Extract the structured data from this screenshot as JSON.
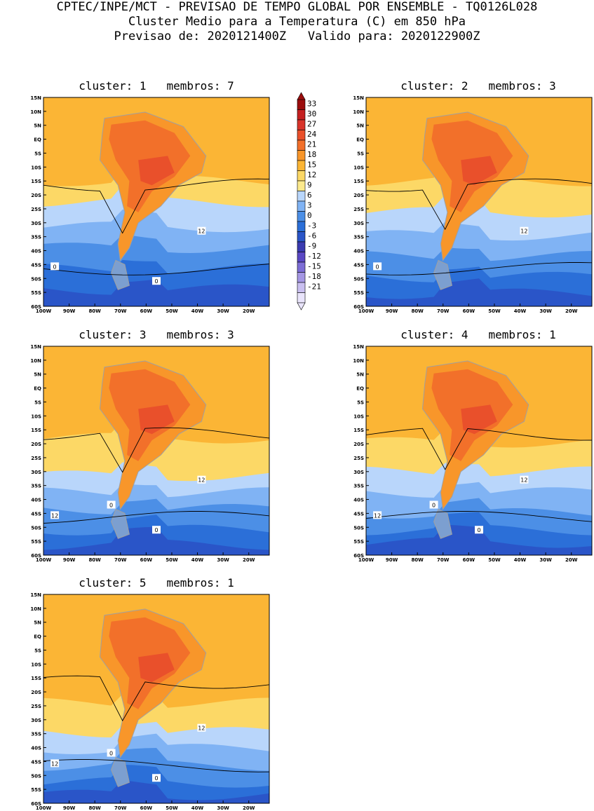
{
  "header": {
    "line1": "CPTEC/INPE/MCT - PREVISAO DE TEMPO GLOBAL POR ENSEMBLE - TQ0126L028",
    "line2": "Cluster Medio para a Temperatura (C) em 850 hPa",
    "line3": "Previsao de: 2020121400Z   Valido para: 2020122900Z"
  },
  "lat_labels": [
    "15N",
    "10N",
    "5N",
    "EQ",
    "5S",
    "10S",
    "15S",
    "20S",
    "25S",
    "30S",
    "35S",
    "40S",
    "45S",
    "50S",
    "55S",
    "60S"
  ],
  "lon_labels": [
    "100W",
    "90W",
    "80W",
    "70W",
    "60W",
    "50W",
    "40W",
    "30W",
    "20W"
  ],
  "colorbar": {
    "levels": [
      "33",
      "30",
      "27",
      "24",
      "21",
      "18",
      "15",
      "12",
      "9",
      "6",
      "3",
      "0",
      "-3",
      "-6",
      "-9",
      "-12",
      "-15",
      "-18",
      "-21"
    ],
    "colors": [
      "#9b0d0d",
      "#c42020",
      "#d8342a",
      "#e9502b",
      "#f2702a",
      "#f8962a",
      "#fbb535",
      "#fcd866",
      "#fce98c",
      "#b9d6fb",
      "#80b3f4",
      "#4c8fe6",
      "#2b6fd8",
      "#2a55c8",
      "#3a3bb0",
      "#5a48c4",
      "#7d6ed6",
      "#a597e4",
      "#c9bff0",
      "#e9e4fb"
    ],
    "sea_colors": {
      "warm": "#f6a93b",
      "mid": "#fcd866",
      "cool": "#80b3f4",
      "cold": "#2b6fd8",
      "polar": "#3a3bb0"
    }
  },
  "panels": [
    {
      "title": "cluster: 1   membros: 7",
      "contour_labels": [
        "12",
        "0",
        "0"
      ]
    },
    {
      "title": "cluster: 2   membros: 3",
      "contour_labels": [
        "12",
        "0"
      ]
    },
    {
      "title": "cluster: 3   membros: 3",
      "contour_labels": [
        "12",
        "12",
        "0",
        "0"
      ]
    },
    {
      "title": "cluster: 4   membros: 1",
      "contour_labels": [
        "12",
        "12",
        "0",
        "0"
      ]
    },
    {
      "title": "cluster: 5   membros: 1",
      "contour_labels": [
        "12",
        "12",
        "0",
        "0"
      ]
    }
  ]
}
